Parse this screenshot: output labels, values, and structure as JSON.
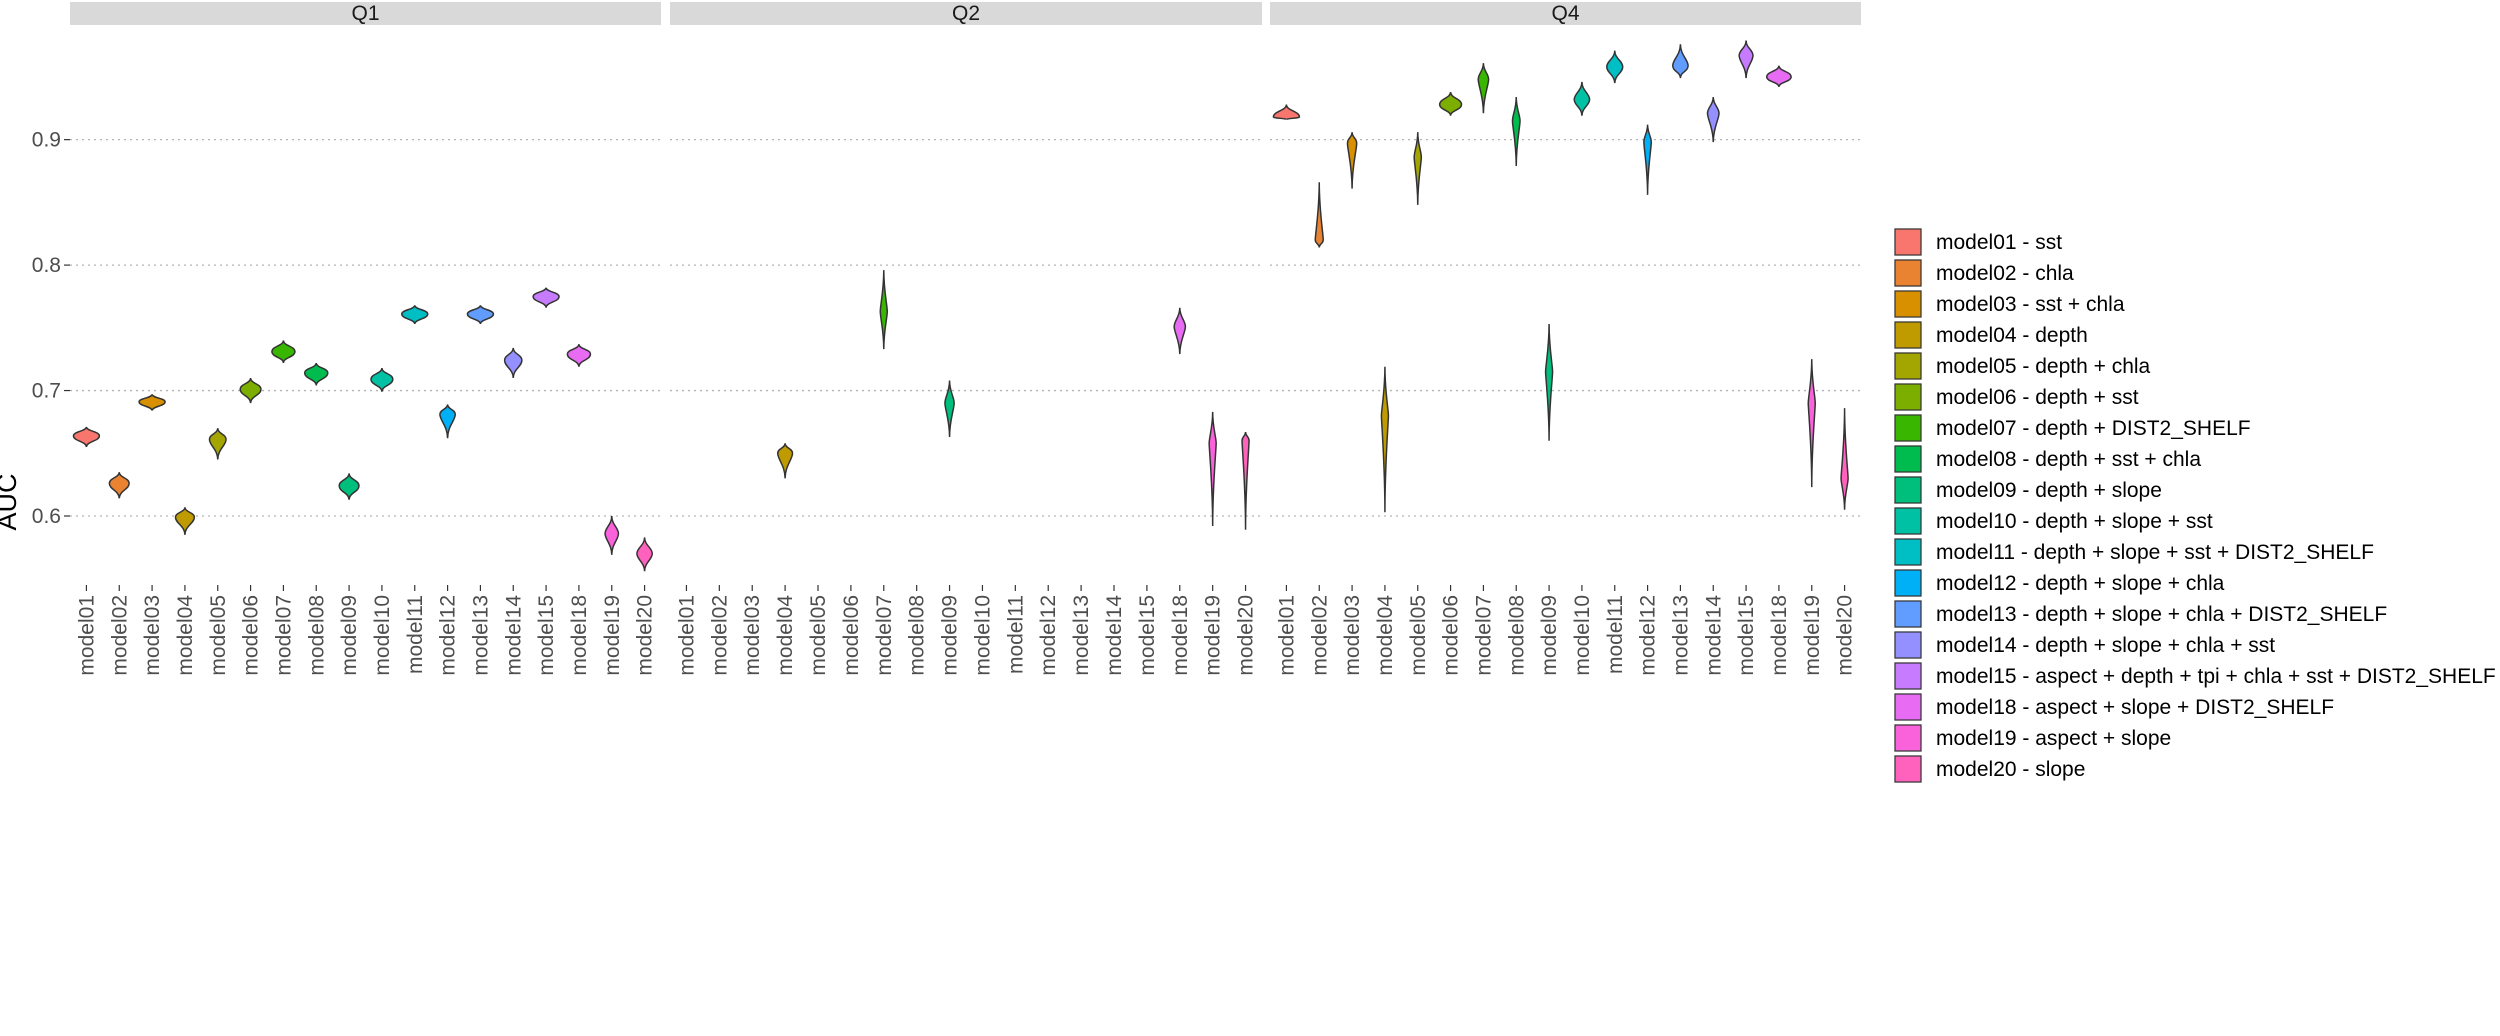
{
  "chart_data": {
    "type": "violin",
    "ylabel": "AUC",
    "y_ticks": [
      0.6,
      0.7,
      0.8,
      0.9
    ],
    "ylim": [
      0.545,
      0.985
    ],
    "grid": true,
    "legend_position": "right",
    "categories": [
      "model01",
      "model02",
      "model03",
      "model04",
      "model05",
      "model06",
      "model07",
      "model08",
      "model09",
      "model10",
      "model11",
      "model12",
      "model13",
      "model14",
      "model15",
      "model18",
      "model19",
      "model20"
    ],
    "legend": [
      {
        "key": "model01",
        "label": "model01 - sst",
        "color": "#F8766D"
      },
      {
        "key": "model02",
        "label": "model02 - chla",
        "color": "#EA8331"
      },
      {
        "key": "model03",
        "label": "model03 - sst + chla",
        "color": "#D89000"
      },
      {
        "key": "model04",
        "label": "model04 - depth",
        "color": "#C09B00"
      },
      {
        "key": "model05",
        "label": "model05 - depth + chla",
        "color": "#A3A500"
      },
      {
        "key": "model06",
        "label": "model06 - depth + sst",
        "color": "#7CAE00"
      },
      {
        "key": "model07",
        "label": "model07 - depth + DIST2_SHELF",
        "color": "#39B600"
      },
      {
        "key": "model08",
        "label": "model08 - depth + sst + chla",
        "color": "#00BB4E"
      },
      {
        "key": "model09",
        "label": "model09 - depth + slope",
        "color": "#00BF7D"
      },
      {
        "key": "model10",
        "label": "model10 - depth + slope + sst",
        "color": "#00C1A3"
      },
      {
        "key": "model11",
        "label": "model11 - depth + slope + sst + DIST2_SHELF",
        "color": "#00BFC4"
      },
      {
        "key": "model12",
        "label": "model12 - depth + slope + chla",
        "color": "#00B0F6"
      },
      {
        "key": "model13",
        "label": "model13 - depth + slope + chla + DIST2_SHELF",
        "color": "#619CFF"
      },
      {
        "key": "model14",
        "label": "model14 - depth + slope + chla + sst",
        "color": "#9590FF"
      },
      {
        "key": "model15",
        "label": "model15 - aspect + depth + tpi + chla + sst + DIST2_SHELF",
        "color": "#C77CFF"
      },
      {
        "key": "model18",
        "label": "model18 - aspect + slope + DIST2_SHELF",
        "color": "#E76BF3"
      },
      {
        "key": "model19",
        "label": "model19 - aspect + slope",
        "color": "#FA62DB"
      },
      {
        "key": "model20",
        "label": "model20 - slope",
        "color": "#FF62BC"
      }
    ],
    "panels": [
      {
        "title": "Q1",
        "violins": [
          {
            "model": "model01",
            "min": 0.655,
            "q": 0.664,
            "max": 0.671
          },
          {
            "model": "model02",
            "min": 0.614,
            "q": 0.626,
            "max": 0.635
          },
          {
            "model": "model03",
            "min": 0.684,
            "q": 0.691,
            "max": 0.697
          },
          {
            "model": "model04",
            "min": 0.585,
            "q": 0.599,
            "max": 0.607
          },
          {
            "model": "model05",
            "min": 0.645,
            "q": 0.661,
            "max": 0.67
          },
          {
            "model": "model06",
            "min": 0.69,
            "q": 0.701,
            "max": 0.71
          },
          {
            "model": "model07",
            "min": 0.722,
            "q": 0.731,
            "max": 0.74
          },
          {
            "model": "model08",
            "min": 0.704,
            "q": 0.714,
            "max": 0.722
          },
          {
            "model": "model09",
            "min": 0.613,
            "q": 0.624,
            "max": 0.634
          },
          {
            "model": "model10",
            "min": 0.699,
            "q": 0.709,
            "max": 0.718
          },
          {
            "model": "model11",
            "min": 0.753,
            "q": 0.761,
            "max": 0.768
          },
          {
            "model": "model12",
            "min": 0.662,
            "q": 0.681,
            "max": 0.689
          },
          {
            "model": "model13",
            "min": 0.753,
            "q": 0.761,
            "max": 0.768
          },
          {
            "model": "model14",
            "min": 0.71,
            "q": 0.724,
            "max": 0.734
          },
          {
            "model": "model15",
            "min": 0.766,
            "q": 0.775,
            "max": 0.782
          },
          {
            "model": "model18",
            "min": 0.719,
            "q": 0.729,
            "max": 0.737
          },
          {
            "model": "model19",
            "min": 0.569,
            "q": 0.586,
            "max": 0.6
          },
          {
            "model": "model20",
            "min": 0.556,
            "q": 0.57,
            "max": 0.583
          }
        ]
      },
      {
        "title": "Q2",
        "violins": [
          {
            "model": "model04",
            "min": 0.63,
            "q": 0.65,
            "max": 0.658
          },
          {
            "model": "model07",
            "min": 0.733,
            "q": 0.763,
            "max": 0.796
          },
          {
            "model": "model09",
            "min": 0.663,
            "q": 0.69,
            "max": 0.708
          },
          {
            "model": "model18",
            "min": 0.729,
            "q": 0.751,
            "max": 0.766
          },
          {
            "model": "model19",
            "min": 0.592,
            "q": 0.658,
            "max": 0.683
          },
          {
            "model": "model20",
            "min": 0.589,
            "q": 0.66,
            "max": 0.667
          }
        ]
      },
      {
        "title": "Q4",
        "violins": [
          {
            "model": "model01",
            "min": 0.916,
            "q": 0.918,
            "max": 0.928
          },
          {
            "model": "model02",
            "min": 0.814,
            "q": 0.82,
            "max": 0.866
          },
          {
            "model": "model03",
            "min": 0.861,
            "q": 0.897,
            "max": 0.906
          },
          {
            "model": "model04",
            "min": 0.603,
            "q": 0.68,
            "max": 0.719
          },
          {
            "model": "model05",
            "min": 0.848,
            "q": 0.886,
            "max": 0.906
          },
          {
            "model": "model06",
            "min": 0.919,
            "q": 0.928,
            "max": 0.938
          },
          {
            "model": "model07",
            "min": 0.921,
            "q": 0.948,
            "max": 0.961
          },
          {
            "model": "model08",
            "min": 0.879,
            "q": 0.915,
            "max": 0.934
          },
          {
            "model": "model09",
            "min": 0.66,
            "q": 0.715,
            "max": 0.753
          },
          {
            "model": "model10",
            "min": 0.919,
            "q": 0.932,
            "max": 0.946
          },
          {
            "model": "model11",
            "min": 0.945,
            "q": 0.958,
            "max": 0.971
          },
          {
            "model": "model12",
            "min": 0.856,
            "q": 0.898,
            "max": 0.912
          },
          {
            "model": "model13",
            "min": 0.949,
            "q": 0.959,
            "max": 0.976
          },
          {
            "model": "model14",
            "min": 0.898,
            "q": 0.921,
            "max": 0.934
          },
          {
            "model": "model15",
            "min": 0.949,
            "q": 0.967,
            "max": 0.979
          },
          {
            "model": "model18",
            "min": 0.942,
            "q": 0.95,
            "max": 0.959
          },
          {
            "model": "model19",
            "min": 0.623,
            "q": 0.69,
            "max": 0.725
          },
          {
            "model": "model20",
            "min": 0.605,
            "q": 0.63,
            "max": 0.686
          }
        ]
      }
    ]
  }
}
